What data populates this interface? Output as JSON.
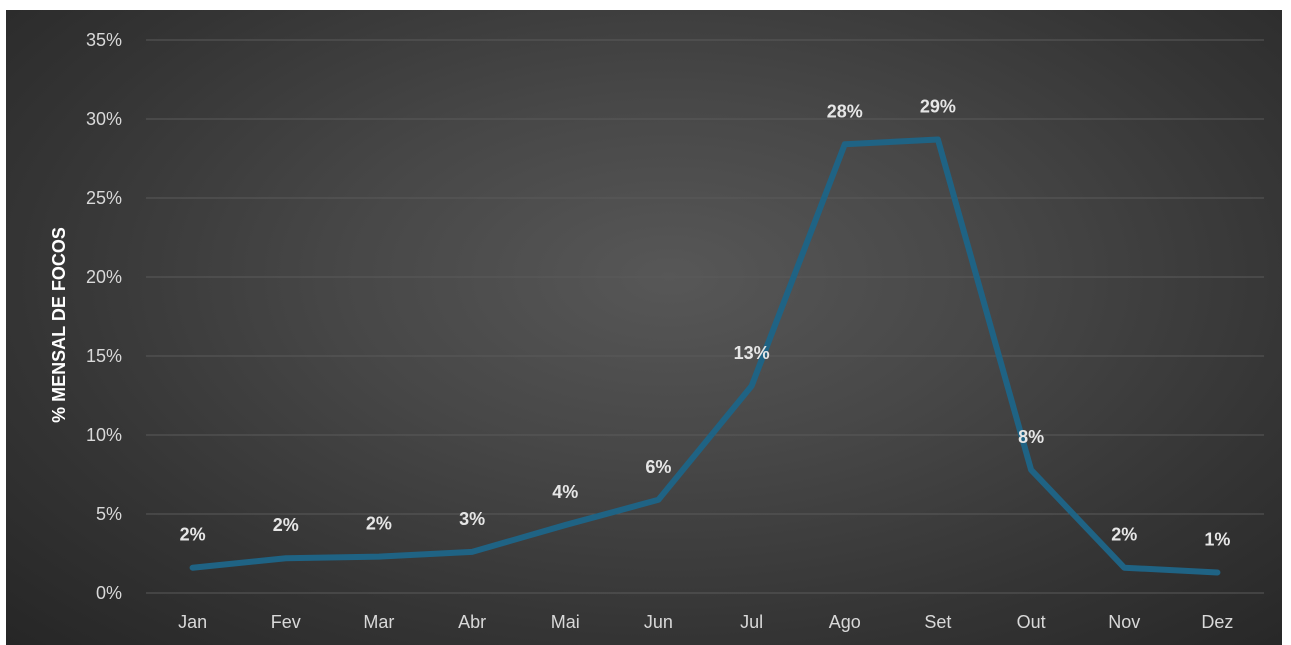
{
  "chart_data": {
    "type": "line",
    "title": "",
    "xlabel": "",
    "ylabel": "% MENSAL  DE FOCOS",
    "categories": [
      "Jan",
      "Fev",
      "Mar",
      "Abr",
      "Mai",
      "Jun",
      "Jul",
      "Ago",
      "Set",
      "Out",
      "Nov",
      "Dez"
    ],
    "series": [
      {
        "values": [
          1.6,
          2.2,
          2.3,
          2.6,
          4.3,
          5.9,
          13.1,
          28.4,
          28.7,
          7.8,
          1.6,
          1.3
        ],
        "labels": [
          "2%",
          "2%",
          "2%",
          "3%",
          "4%",
          "6%",
          "13%",
          "28%",
          "29%",
          "8%",
          "2%",
          "1%"
        ],
        "color": "#1f6384"
      }
    ],
    "ylim": [
      0,
      35
    ],
    "yticks": [
      "0%",
      "5%",
      "10%",
      "15%",
      "20%",
      "25%",
      "30%",
      "35%"
    ],
    "grid": true,
    "legend": "none"
  },
  "colors": {
    "background": "#3a3a3a",
    "gridline": "#5a5a5a",
    "line": "#1f6384",
    "text": "#d9d9d9"
  }
}
